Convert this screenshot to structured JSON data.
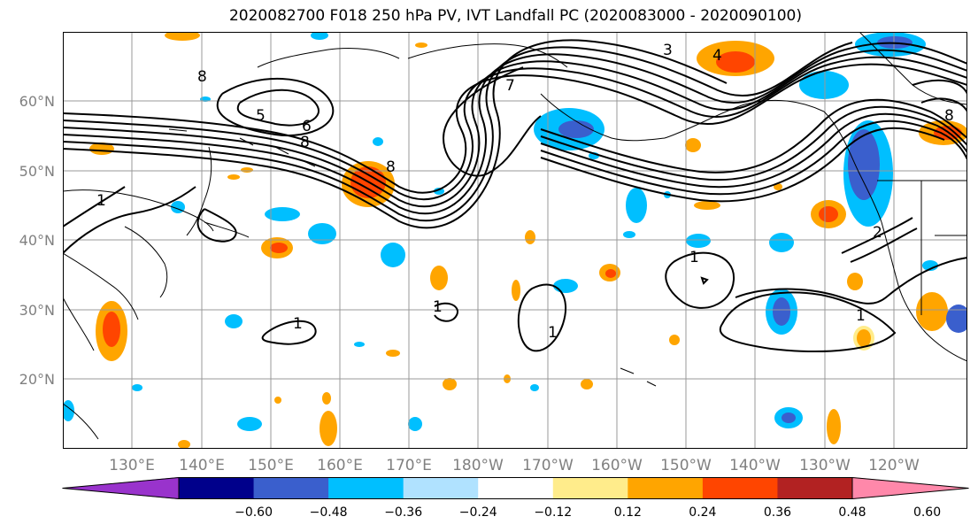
{
  "title": "2020082700 F018 250 hPa PV, IVT Landfall PC (2020083000 - 2020090100)",
  "map": {
    "projection": "plate carree",
    "extent": {
      "lon_min": 120,
      "lon_max": 251,
      "lat_min": 10,
      "lat_max": 70
    },
    "grid": true,
    "lat_ticks": [
      {
        "value": 20,
        "label": "20°N"
      },
      {
        "value": 30,
        "label": "30°N"
      },
      {
        "value": 40,
        "label": "40°N"
      },
      {
        "value": 50,
        "label": "50°N"
      },
      {
        "value": 60,
        "label": "60°N"
      }
    ],
    "lon_ticks": [
      {
        "value": 130,
        "label": "130°E"
      },
      {
        "value": 140,
        "label": "140°E"
      },
      {
        "value": 150,
        "label": "150°E"
      },
      {
        "value": 160,
        "label": "160°E"
      },
      {
        "value": 170,
        "label": "170°E"
      },
      {
        "value": 180,
        "label": "180°W"
      },
      {
        "value": 190,
        "label": "170°W"
      },
      {
        "value": 200,
        "label": "160°W"
      },
      {
        "value": 210,
        "label": "150°W"
      },
      {
        "value": 220,
        "label": "140°W"
      },
      {
        "value": 230,
        "label": "130°W"
      },
      {
        "value": 240,
        "label": "120°W"
      }
    ],
    "contour_labels": [
      "1",
      "1",
      "1",
      "1",
      "1",
      "1",
      "2",
      "3",
      "4",
      "5",
      "6",
      "7",
      "8",
      "8",
      "8",
      "8"
    ]
  },
  "colorbar": {
    "colors": [
      "#9933cc",
      "#00008b",
      "#3a5fcd",
      "#00bfff",
      "#b0e2ff",
      "#ffffff",
      "#ffec8b",
      "#ffa500",
      "#ff4500",
      "#b22222",
      "#ff88aa"
    ],
    "ticks": [
      "−0.60",
      "−0.48",
      "−0.36",
      "−0.24",
      "−0.12",
      "0.12",
      "0.24",
      "0.36",
      "0.48",
      "0.60"
    ]
  }
}
